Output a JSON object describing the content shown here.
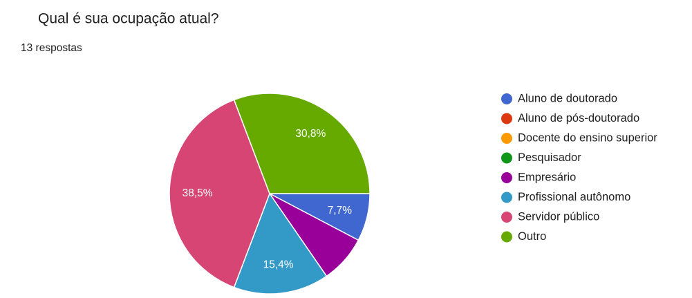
{
  "chart_data": {
    "type": "pie",
    "title": "Qual é sua ocupação atual?",
    "subtitle": "13 respostas",
    "categories": [
      "Aluno de doutorado",
      "Aluno de pós-doutorado",
      "Docente do ensino superior",
      "Pesquisador",
      "Empresário",
      "Profissional autônomo",
      "Servidor público",
      "Outro"
    ],
    "values": [
      7.7,
      0,
      0,
      0,
      7.7,
      15.4,
      38.5,
      30.8
    ],
    "value_labels": [
      "7,7%",
      null,
      null,
      null,
      null,
      "15,4%",
      "38,5%",
      "30,8%"
    ],
    "colors": [
      "#3f67cf",
      "#dc3912",
      "#ff9900",
      "#109618",
      "#990099",
      "#3399c6",
      "#d64573",
      "#66aa00"
    ],
    "legend": "right"
  }
}
